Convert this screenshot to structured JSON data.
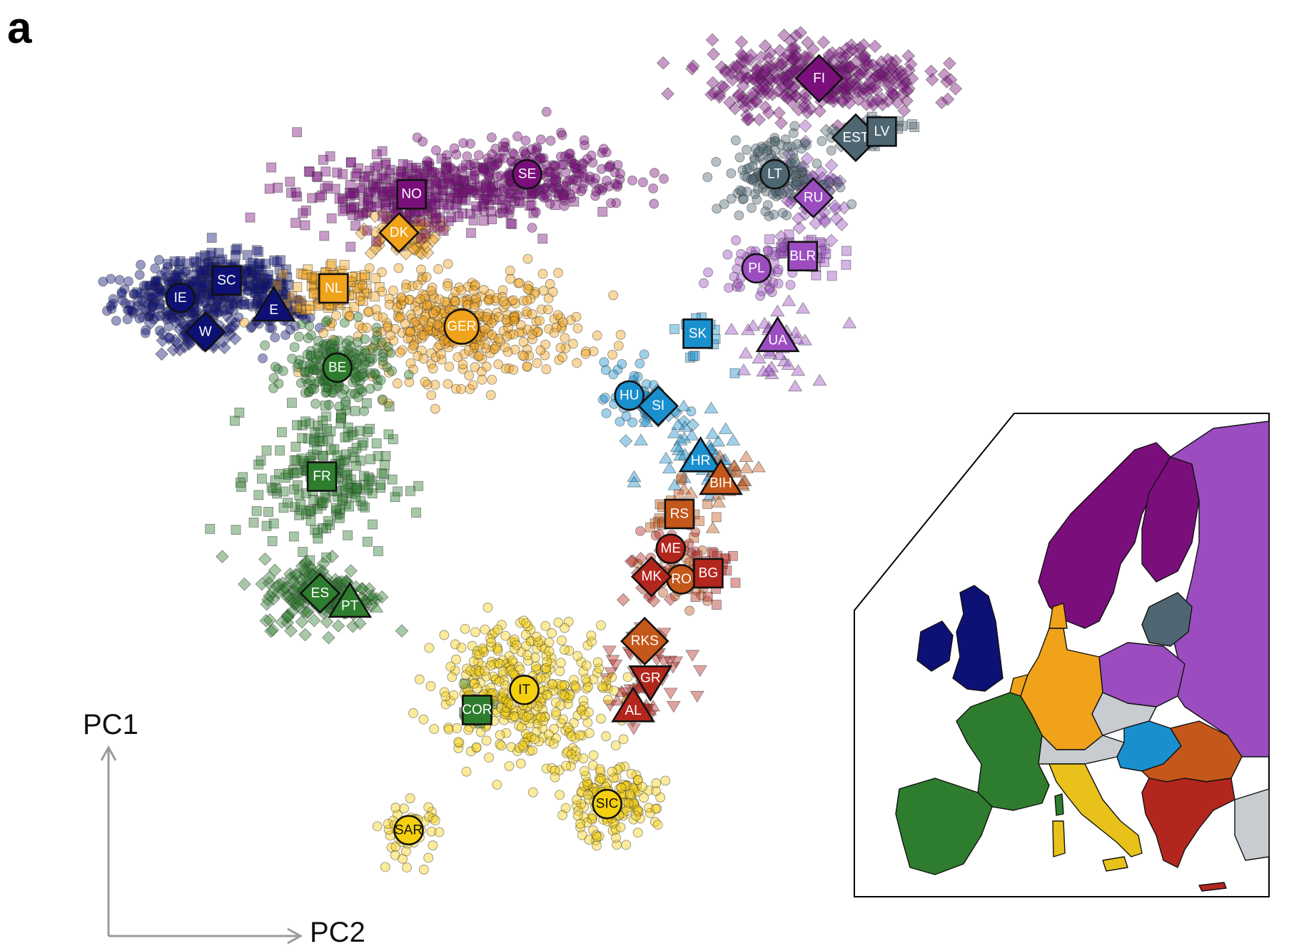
{
  "panel_letter": "a",
  "chart_data": {
    "type": "scatter",
    "title": "",
    "xlabel": "PC2",
    "ylabel": "PC1",
    "xlim": [
      0,
      100
    ],
    "ylim": [
      0,
      100
    ],
    "colors": {
      "navy": "#0d1175",
      "green": "#2e7d2e",
      "orange": "#f0a21a",
      "purple": "#7a0f7c",
      "lilac": "#9b4dc0",
      "slate": "#4e6672",
      "blue": "#1a8fce",
      "rust": "#c4571a",
      "red": "#b3261e",
      "yellow": "#f5d00f",
      "grey": "#c8ccd0"
    },
    "groups": [
      {
        "label": "IE",
        "x": 7.6,
        "y": 70.3,
        "shape": "circle",
        "color": "navy",
        "spread": [
          7,
          3.5
        ],
        "n": 260,
        "mshape": "circle"
      },
      {
        "label": "SC",
        "x": 12.4,
        "y": 72.3,
        "shape": "square",
        "color": "navy",
        "spread": [
          7,
          3
        ],
        "n": 180,
        "mshape": "square"
      },
      {
        "label": "W",
        "x": 10.2,
        "y": 66.4,
        "shape": "diamond",
        "color": "navy",
        "spread": [
          4,
          2
        ],
        "n": 70,
        "mshape": "diamond"
      },
      {
        "label": "E",
        "x": 17.3,
        "y": 69.4,
        "shape": "triangle",
        "color": "navy",
        "spread": [
          4,
          3
        ],
        "n": 90,
        "mshape": "circle"
      },
      {
        "label": "NL",
        "x": 23.5,
        "y": 71.4,
        "shape": "square",
        "color": "orange",
        "spread": [
          4,
          3
        ],
        "n": 120,
        "mshape": "square"
      },
      {
        "label": "DK",
        "x": 30.3,
        "y": 77.8,
        "shape": "diamond",
        "color": "orange",
        "spread": [
          4,
          2.5
        ],
        "n": 90,
        "mshape": "diamond"
      },
      {
        "label": "GER",
        "x": 36.8,
        "y": 67.0,
        "shape": "circle",
        "color": "orange",
        "spread": [
          12,
          6
        ],
        "n": 420,
        "mshape": "circle"
      },
      {
        "label": "BE",
        "x": 23.9,
        "y": 62.3,
        "shape": "circle",
        "color": "green",
        "spread": [
          5,
          4
        ],
        "n": 220,
        "mshape": "circle"
      },
      {
        "label": "FR",
        "x": 22.3,
        "y": 49.8,
        "shape": "square",
        "color": "green",
        "spread": [
          7,
          8
        ],
        "n": 220,
        "mshape": "square"
      },
      {
        "label": "ES",
        "x": 22.1,
        "y": 36.4,
        "shape": "diamond",
        "color": "green",
        "spread": [
          6,
          4
        ],
        "n": 180,
        "mshape": "diamond"
      },
      {
        "label": "PT",
        "x": 25.2,
        "y": 35.4,
        "shape": "triangle",
        "color": "green",
        "spread": [
          2,
          1.5
        ],
        "n": 20,
        "mshape": "triangle"
      },
      {
        "label": "NO",
        "x": 31.6,
        "y": 82.2,
        "shape": "square",
        "color": "purple",
        "spread": [
          12,
          4
        ],
        "n": 330,
        "mshape": "square"
      },
      {
        "label": "SE",
        "x": 43.6,
        "y": 84.5,
        "shape": "circle",
        "color": "purple",
        "spread": [
          11,
          4
        ],
        "n": 280,
        "mshape": "circle"
      },
      {
        "label": "FI",
        "x": 73.9,
        "y": 95.5,
        "shape": "diamond",
        "color": "purple",
        "spread": [
          11,
          4
        ],
        "n": 360,
        "mshape": "diamond"
      },
      {
        "label": "RU",
        "x": 73.3,
        "y": 81.8,
        "shape": "diamond",
        "color": "lilac",
        "spread": [
          4,
          5
        ],
        "n": 60,
        "mshape": "diamond"
      },
      {
        "label": "BLR",
        "x": 72.2,
        "y": 75.1,
        "shape": "square",
        "color": "lilac",
        "spread": [
          4,
          3
        ],
        "n": 40,
        "mshape": "square"
      },
      {
        "label": "PL",
        "x": 67.4,
        "y": 73.7,
        "shape": "circle",
        "color": "lilac",
        "spread": [
          4,
          3
        ],
        "n": 50,
        "mshape": "circle"
      },
      {
        "label": "UA",
        "x": 69.6,
        "y": 65.9,
        "shape": "triangle",
        "color": "lilac",
        "spread": [
          5,
          5
        ],
        "n": 40,
        "mshape": "triangle"
      },
      {
        "label": "LT",
        "x": 69.3,
        "y": 84.5,
        "shape": "circle",
        "color": "slate",
        "spread": [
          5,
          4
        ],
        "n": 160,
        "mshape": "circle"
      },
      {
        "label": "EST",
        "x": 77.7,
        "y": 88.7,
        "shape": "diamond",
        "color": "slate",
        "spread": [
          3,
          2
        ],
        "n": 25,
        "mshape": "diamond"
      },
      {
        "label": "LV",
        "x": 80.4,
        "y": 89.4,
        "shape": "square",
        "color": "slate",
        "spread": [
          3,
          2
        ],
        "n": 20,
        "mshape": "square"
      },
      {
        "label": "SK",
        "x": 61.3,
        "y": 66.2,
        "shape": "square",
        "color": "blue",
        "spread": [
          3,
          3
        ],
        "n": 20,
        "mshape": "square"
      },
      {
        "label": "HU",
        "x": 54.2,
        "y": 59.1,
        "shape": "circle",
        "color": "blue",
        "spread": [
          3,
          4
        ],
        "n": 40,
        "mshape": "circle"
      },
      {
        "label": "SI",
        "x": 57.2,
        "y": 57.9,
        "shape": "diamond",
        "color": "blue",
        "spread": [
          3,
          3
        ],
        "n": 20,
        "mshape": "diamond"
      },
      {
        "label": "HR",
        "x": 61.6,
        "y": 52.1,
        "shape": "triangle",
        "color": "blue",
        "spread": [
          5,
          5
        ],
        "n": 40,
        "mshape": "triangle"
      },
      {
        "label": "BIH",
        "x": 63.7,
        "y": 49.5,
        "shape": "triangle",
        "color": "rust",
        "spread": [
          4,
          4
        ],
        "n": 30,
        "mshape": "triangle"
      },
      {
        "label": "RS",
        "x": 59.4,
        "y": 45.5,
        "shape": "square",
        "color": "rust",
        "spread": [
          3,
          3
        ],
        "n": 30,
        "mshape": "square"
      },
      {
        "label": "RO",
        "x": 59.6,
        "y": 38.0,
        "shape": "circle",
        "color": "rust",
        "spread": [
          4,
          3
        ],
        "n": 40,
        "mshape": "circle"
      },
      {
        "label": "RKS",
        "x": 55.8,
        "y": 30.9,
        "shape": "diamond",
        "color": "rust",
        "spread": [
          2,
          2
        ],
        "n": 15,
        "mshape": "diamond"
      },
      {
        "label": "ME",
        "x": 58.5,
        "y": 41.5,
        "shape": "circle",
        "color": "red",
        "spread": [
          3,
          3
        ],
        "n": 20,
        "mshape": "circle"
      },
      {
        "label": "MK",
        "x": 56.5,
        "y": 38.3,
        "shape": "diamond",
        "color": "red",
        "spread": [
          3,
          3
        ],
        "n": 20,
        "mshape": "diamond"
      },
      {
        "label": "BG",
        "x": 62.4,
        "y": 38.7,
        "shape": "square",
        "color": "red",
        "spread": [
          3,
          3
        ],
        "n": 30,
        "mshape": "square"
      },
      {
        "label": "GR",
        "x": 56.4,
        "y": 26.3,
        "shape": "invtriangle",
        "color": "red",
        "spread": [
          4,
          5
        ],
        "n": 50,
        "mshape": "invtriangle"
      },
      {
        "label": "AL",
        "x": 54.6,
        "y": 23.4,
        "shape": "triangle",
        "color": "red",
        "spread": [
          2,
          2
        ],
        "n": 15,
        "mshape": "triangle"
      },
      {
        "label": "IT",
        "x": 43.3,
        "y": 25.3,
        "shape": "circle",
        "color": "yellow",
        "spread": [
          9,
          8
        ],
        "n": 400,
        "mshape": "circle"
      },
      {
        "label": "COR",
        "x": 38.4,
        "y": 23.0,
        "shape": "square",
        "color": "green",
        "spread": [
          2,
          2
        ],
        "n": 15,
        "mshape": "square"
      },
      {
        "label": "SIC",
        "x": 51.9,
        "y": 12.2,
        "shape": "circle",
        "color": "yellow",
        "spread": [
          5,
          4
        ],
        "n": 160,
        "mshape": "circle"
      },
      {
        "label": "SAR",
        "x": 31.3,
        "y": 9.2,
        "shape": "circle",
        "color": "yellow",
        "spread": [
          3,
          3.5
        ],
        "n": 60,
        "mshape": "circle"
      }
    ]
  },
  "inset_map": {
    "colors": {
      "sea": "#ffffff",
      "other": "#c8ccd0"
    }
  }
}
